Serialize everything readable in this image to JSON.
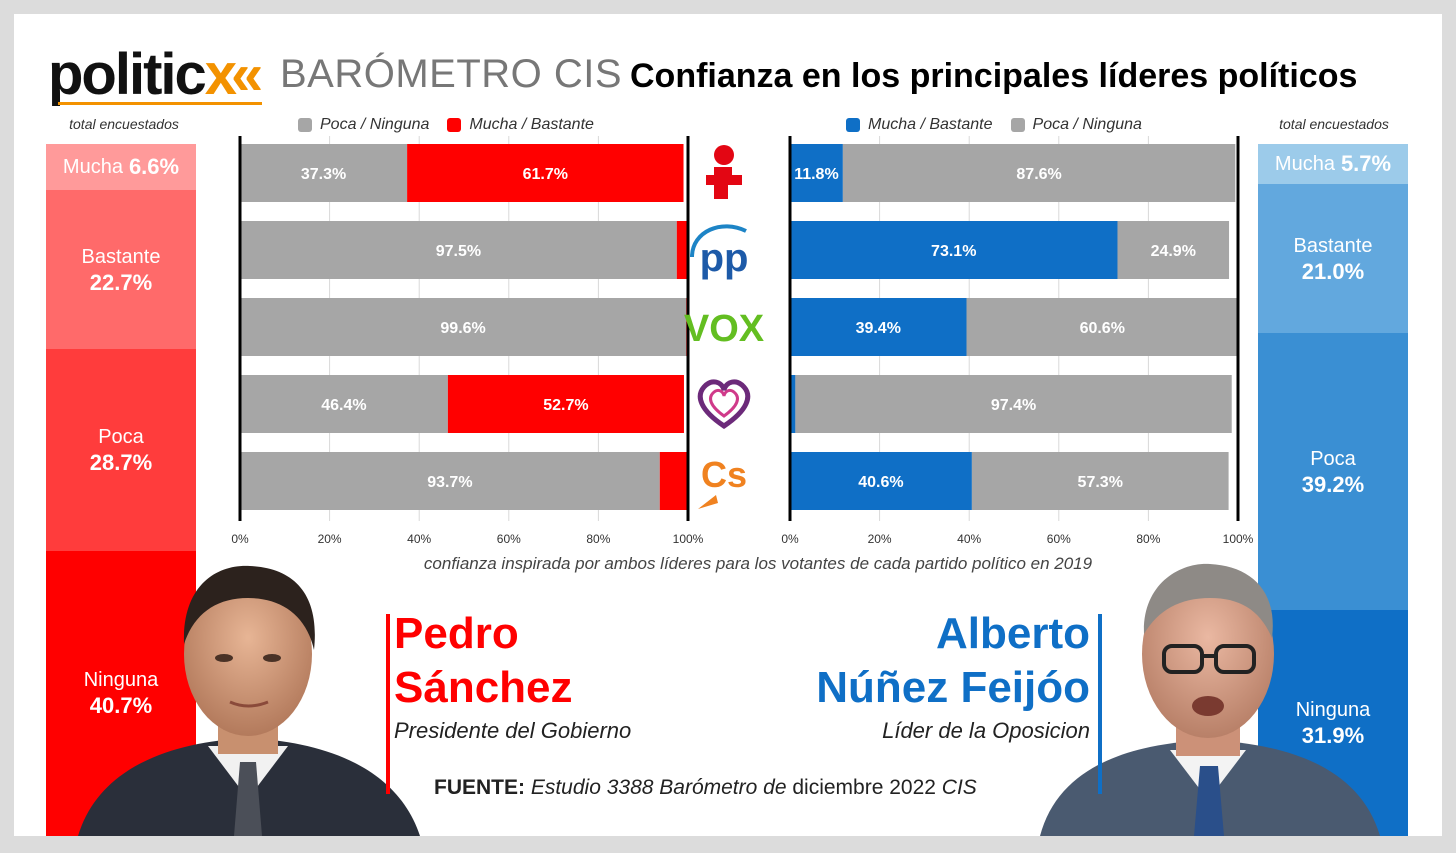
{
  "header": {
    "logo_word": "politic",
    "logo_chevron": "x«",
    "barometer": "BARÓMETRO CIS",
    "title": "Confianza en los principales líderes políticos"
  },
  "left_stack": {
    "caption": "total encuestados",
    "segments": [
      {
        "label": "Mucha",
        "value": "6.6%",
        "share": 6.6,
        "color": "#ff9a9a"
      },
      {
        "label": "Bastante",
        "value": "22.7%",
        "share": 22.7,
        "color": "#ff6a6a"
      },
      {
        "label": "Poca",
        "value": "28.7%",
        "share": 28.7,
        "color": "#ff3c3c"
      },
      {
        "label": "Ninguna",
        "value": "40.7%",
        "share": 40.7,
        "color": "#ff0000"
      }
    ]
  },
  "right_stack": {
    "caption": "total encuestados",
    "segments": [
      {
        "label": "Mucha",
        "value": "5.7%",
        "share": 5.7,
        "color": "#9ccbea"
      },
      {
        "label": "Bastante",
        "value": "21.0%",
        "share": 21.0,
        "color": "#62a8de"
      },
      {
        "label": "Poca",
        "value": "39.2%",
        "share": 39.2,
        "color": "#3a8fd3"
      },
      {
        "label": "Ninguna",
        "value": "31.9%",
        "share": 31.9,
        "color": "#0f6fc6"
      }
    ]
  },
  "legend_left": {
    "poca": "Poca / Ninguna",
    "mucha": "Mucha / Bastante"
  },
  "legend_right": {
    "mucha": "Mucha / Bastante",
    "poca": "Poca / Ninguna"
  },
  "colors": {
    "grey": "#a6a6a6",
    "red": "#ff0000",
    "blue": "#0f6fc6",
    "orange": "#f39200"
  },
  "parties": [
    {
      "icon": "psoe-rose-logo"
    },
    {
      "icon": "pp-logo"
    },
    {
      "icon": "vox-logo"
    },
    {
      "icon": "podemos-heart-logo"
    },
    {
      "icon": "cs-logo"
    }
  ],
  "chart_data": [
    {
      "type": "bar",
      "orientation": "horizontal-stacked",
      "categories": [
        "PSOE",
        "PP",
        "VOX",
        "Podemos",
        "Cs"
      ],
      "series": [
        {
          "name": "Poca / Ninguna",
          "values": [
            37.3,
            97.5,
            99.6,
            46.4,
            93.7
          ],
          "labels": [
            "37.3%",
            "97.5%",
            "99.6%",
            "46.4%",
            "93.7%"
          ]
        },
        {
          "name": "Mucha / Bastante",
          "values": [
            61.7,
            2.5,
            0.4,
            52.7,
            6.3
          ],
          "labels": [
            "61.7%",
            "",
            "",
            "52.7%",
            ""
          ]
        }
      ],
      "xlim": [
        0,
        100
      ],
      "xticks": [
        "0%",
        "20%",
        "40%",
        "60%",
        "80%",
        "100%"
      ],
      "grid": true,
      "legend": "top"
    },
    {
      "type": "bar",
      "orientation": "horizontal-stacked",
      "categories": [
        "PSOE",
        "PP",
        "VOX",
        "Podemos",
        "Cs"
      ],
      "series": [
        {
          "name": "Mucha / Bastante",
          "values": [
            11.8,
            73.1,
            39.4,
            1.2,
            40.6
          ],
          "labels": [
            "11.8%",
            "73.1%",
            "39.4%",
            "",
            "40.6%"
          ]
        },
        {
          "name": "Poca / Ninguna",
          "values": [
            87.6,
            24.9,
            60.6,
            97.4,
            57.3
          ],
          "labels": [
            "87.6%",
            "24.9%",
            "60.6%",
            "97.4%",
            "57.3%"
          ]
        }
      ],
      "xlim": [
        0,
        100
      ],
      "xticks": [
        "0%",
        "20%",
        "40%",
        "60%",
        "80%",
        "100%"
      ],
      "grid": true,
      "legend": "top"
    }
  ],
  "subtitle": "confianza inspirada por ambos líderes para los votantes de cada partido político en 2019",
  "leader_left": {
    "first": "Pedro",
    "last": "Sánchez",
    "role": "Presidente del Gobierno"
  },
  "leader_right": {
    "first": "Alberto",
    "last": "Núñez Feijóo",
    "role": "Líder de la Oposicion"
  },
  "source": {
    "label": "FUENTE:",
    "text1": "Estudio 3388 Barómetro de",
    "text2": "diciembre 2022",
    "text3": "CIS"
  }
}
